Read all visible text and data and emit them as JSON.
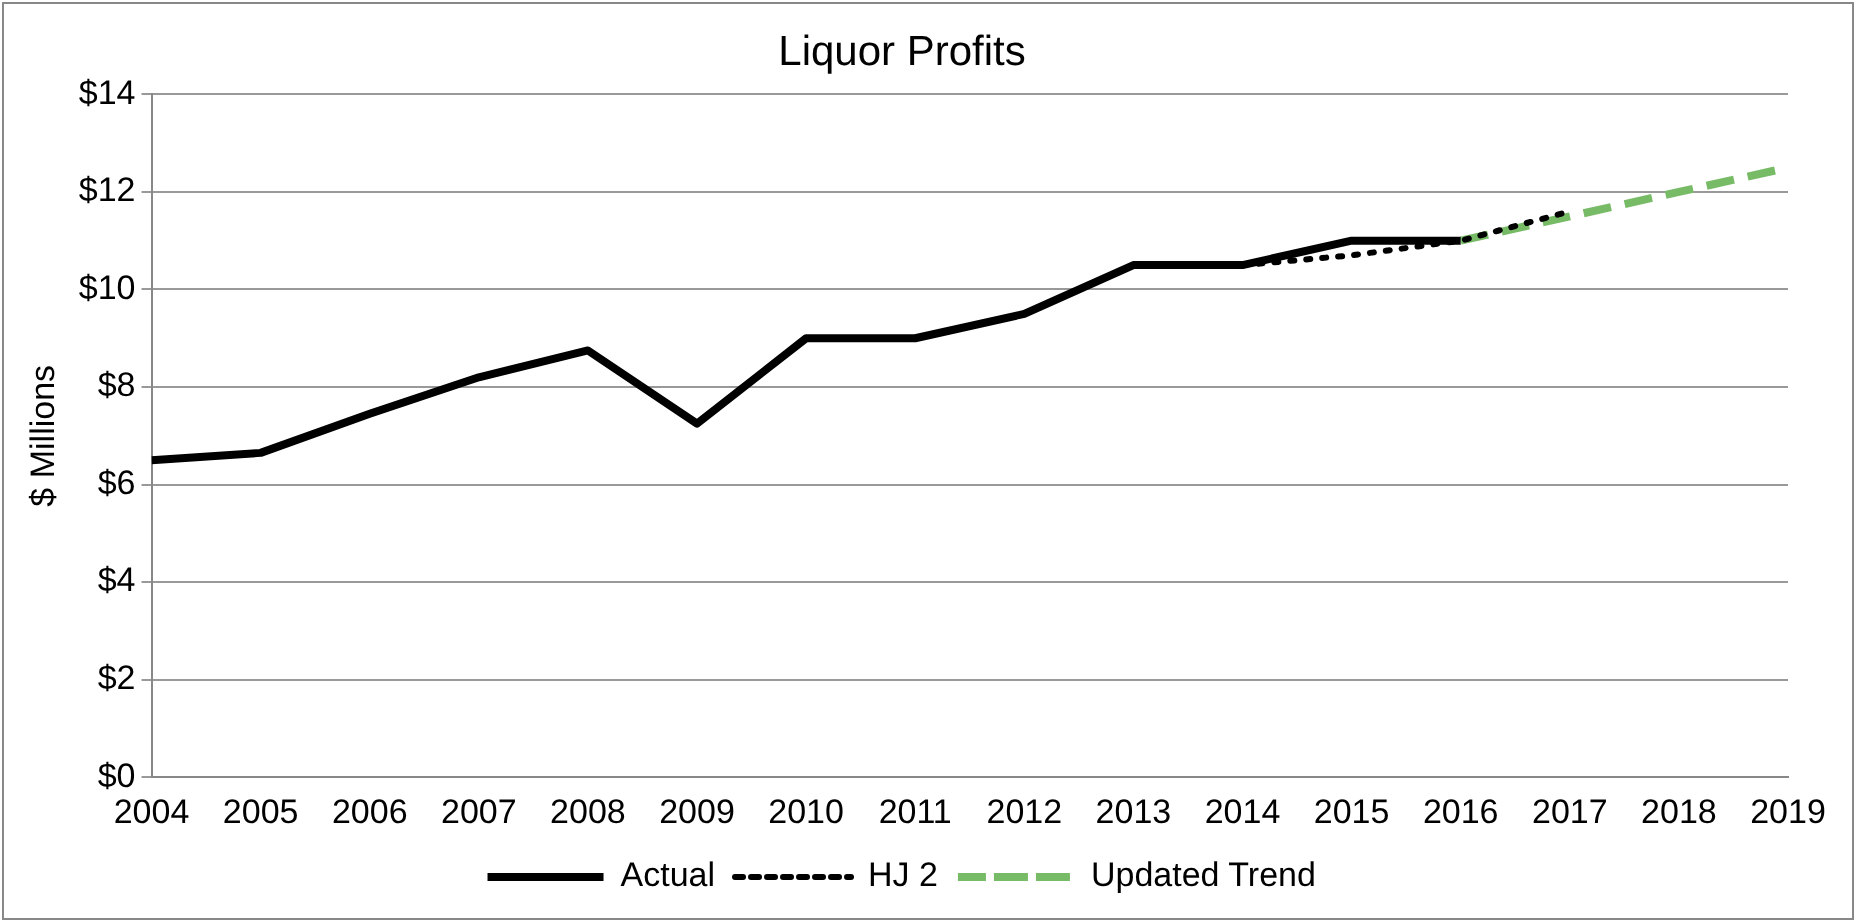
{
  "chart_data": {
    "type": "line",
    "title": "Liquor Profits",
    "ylabel": "$ Millions",
    "xlim": [
      2004,
      2019
    ],
    "xticks": [
      2004,
      2005,
      2006,
      2007,
      2008,
      2009,
      2010,
      2011,
      2012,
      2013,
      2014,
      2015,
      2016,
      2017,
      2018,
      2019
    ],
    "ylim": [
      0,
      14
    ],
    "yticks": [
      {
        "value": 0,
        "label": "$0"
      },
      {
        "value": 2,
        "label": "$2"
      },
      {
        "value": 4,
        "label": "$4"
      },
      {
        "value": 6,
        "label": "$6"
      },
      {
        "value": 8,
        "label": "$8"
      },
      {
        "value": 10,
        "label": "$10"
      },
      {
        "value": 12,
        "label": "$12"
      },
      {
        "value": 14,
        "label": "$14"
      }
    ],
    "grid": "y",
    "legend": "bottom",
    "marker": "none",
    "series": [
      {
        "name": "Actual",
        "color": "#000000",
        "line_style": "solid",
        "x": [
          2004,
          2005,
          2006,
          2007,
          2008,
          2009,
          2010,
          2011,
          2012,
          2013,
          2014,
          2015,
          2016
        ],
        "values": [
          6.5,
          6.65,
          7.45,
          8.2,
          8.75,
          7.25,
          9.0,
          9.0,
          9.5,
          10.5,
          10.5,
          11.0,
          11.0
        ]
      },
      {
        "name": "HJ 2",
        "color": "#000000",
        "line_style": "dotted",
        "x": [
          2014,
          2015,
          2016,
          2017
        ],
        "values": [
          10.5,
          10.7,
          11.0,
          11.6
        ]
      },
      {
        "name": "Updated Trend",
        "color": "#77bb66",
        "line_style": "dashed",
        "x": [
          2016,
          2017,
          2018,
          2019
        ],
        "values": [
          11.0,
          11.5,
          12.0,
          12.5
        ]
      }
    ]
  }
}
